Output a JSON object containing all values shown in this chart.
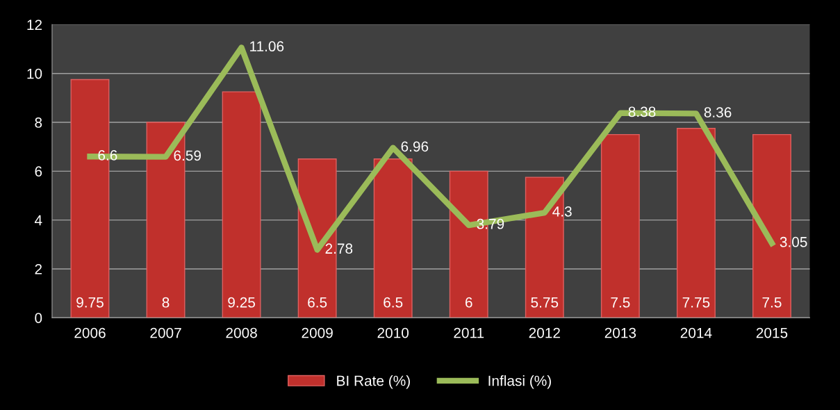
{
  "chart_data": {
    "type": "bar",
    "categories": [
      "2006",
      "2007",
      "2008",
      "2009",
      "2010",
      "2011",
      "2012",
      "2013",
      "2014",
      "2015"
    ],
    "series": [
      {
        "name": "BI Rate (%)",
        "color": "#c0302c",
        "values": [
          9.75,
          8,
          9.25,
          6.5,
          6.5,
          6,
          5.75,
          7.5,
          7.75,
          7.5
        ]
      },
      {
        "name": "Inflasi (%)",
        "type": "line",
        "color": "#9bbb59",
        "values": [
          6.6,
          6.59,
          11.06,
          2.78,
          6.96,
          3.79,
          4.3,
          8.38,
          8.36,
          3.05
        ]
      }
    ],
    "ylim": [
      0,
      12
    ],
    "yticks": [
      0,
      2,
      4,
      6,
      8,
      10,
      12
    ],
    "grid": "y",
    "legend": "bottom",
    "data_labels": true,
    "marker": "none",
    "line_style": "solid"
  }
}
